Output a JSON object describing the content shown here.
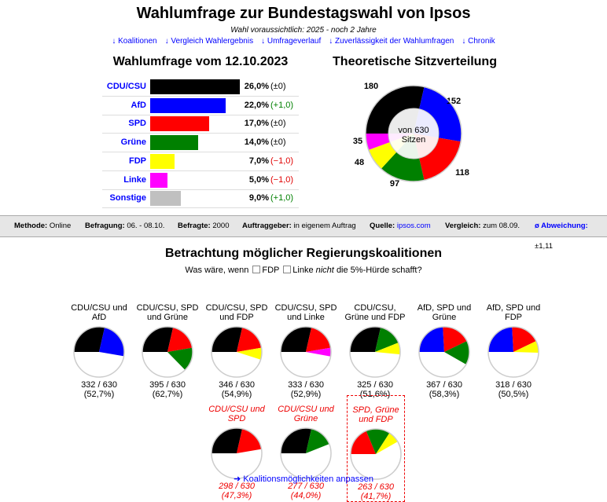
{
  "header": {
    "title": "Wahlumfrage zur Bundestagswahl von Ipsos",
    "subtitle": "Wahl voraussichtlich: 2025 - noch 2 Jahre",
    "nav": [
      "↓ Koalitionen",
      "↓ Vergleich Wahlergebnis",
      "↓ Umfrageverlauf",
      "↓ Zuverlässigkeit der Wahlumfragen",
      "↓ Chronik"
    ]
  },
  "poll": {
    "title": "Wahlumfrage vom 12.10.2023",
    "parties": [
      {
        "name": "CDU/CSU",
        "value": "26,0%",
        "change": "(±0)",
        "pct": 26,
        "color": "#000000",
        "chgcolor": "#000"
      },
      {
        "name": "AfD",
        "value": "22,0%",
        "change": "(+1,0)",
        "pct": 22,
        "color": "#0000ff",
        "chgcolor": "#008000"
      },
      {
        "name": "SPD",
        "value": "17,0%",
        "change": "(±0)",
        "pct": 17,
        "color": "#ff0000",
        "chgcolor": "#000"
      },
      {
        "name": "Grüne",
        "value": "14,0%",
        "change": "(±0)",
        "pct": 14,
        "color": "#008000",
        "chgcolor": "#000"
      },
      {
        "name": "FDP",
        "value": "7,0%",
        "change": "(−1,0)",
        "pct": 7,
        "color": "#ffff00",
        "chgcolor": "#e00000"
      },
      {
        "name": "Linke",
        "value": "5,0%",
        "change": "(−1,0)",
        "pct": 5,
        "color": "#ff00ff",
        "chgcolor": "#e00000"
      },
      {
        "name": "Sonstige",
        "value": "9,0%",
        "change": "(+1,0)",
        "pct": 9,
        "color": "#c0c0c0",
        "chgcolor": "#008000"
      }
    ]
  },
  "seats": {
    "title": "Theoretische Sitzverteilung",
    "center1": "von 630",
    "center2": "Sitzen",
    "total": 630,
    "items": [
      {
        "party": "CDU/CSU",
        "seats": 180,
        "color": "#000000"
      },
      {
        "party": "AfD",
        "seats": 152,
        "color": "#0000ff"
      },
      {
        "party": "SPD",
        "seats": 118,
        "color": "#ff0000"
      },
      {
        "party": "Grüne",
        "seats": 97,
        "color": "#008000"
      },
      {
        "party": "FDP",
        "seats": 48,
        "color": "#ffff00"
      },
      {
        "party": "Linke",
        "seats": 35,
        "color": "#ff00ff"
      }
    ]
  },
  "info": {
    "methode_label": "Methode:",
    "methode": "Online",
    "befragung_label": "Befragung:",
    "befragung": "06. - 08.10.",
    "befragte_label": "Befragte:",
    "befragte": "2000",
    "auftrag_label": "Auftraggeber:",
    "auftrag": "in eigenem Auftrag",
    "quelle_label": "Quelle:",
    "quelle": "ipsos.com",
    "vergleich_label": "Vergleich:",
    "vergleich": "zum 08.09.",
    "abw_label": "ø Abweichung:",
    "abw": "±1,11"
  },
  "coalitions": {
    "title": "Betrachtung möglicher Regierungskoalitionen",
    "q1": "Was wäre, wenn",
    "fdp": "FDP",
    "linke": "Linke",
    "nicht": "nicht",
    "q2": "die 5%-Hürde schafft?",
    "items": [
      {
        "name": "CDU/CSU und AfD",
        "seats": "332 / 630",
        "pct": "(52,7%)",
        "parts": [
          0,
          1
        ]
      },
      {
        "name": "CDU/CSU, SPD und Grüne",
        "seats": "395 / 630",
        "pct": "(62,7%)",
        "parts": [
          0,
          2,
          3
        ]
      },
      {
        "name": "CDU/CSU, SPD und FDP",
        "seats": "346 / 630",
        "pct": "(54,9%)",
        "parts": [
          0,
          2,
          4
        ]
      },
      {
        "name": "CDU/CSU, SPD und Linke",
        "seats": "333 / 630",
        "pct": "(52,9%)",
        "parts": [
          0,
          2,
          5
        ]
      },
      {
        "name": "CDU/CSU, Grüne und FDP",
        "seats": "325 / 630",
        "pct": "(51,6%)",
        "parts": [
          0,
          3,
          4
        ]
      },
      {
        "name": "AfD, SPD und Grüne",
        "seats": "367 / 630",
        "pct": "(58,3%)",
        "parts": [
          1,
          2,
          3
        ]
      },
      {
        "name": "AfD, SPD und FDP",
        "seats": "318 / 630",
        "pct": "(50,5%)",
        "parts": [
          1,
          2,
          4
        ]
      },
      {
        "name": "CDU/CSU und SPD",
        "seats": "298 / 630",
        "pct": "(47,3%)",
        "parts": [
          0,
          2
        ]
      },
      {
        "name": "CDU/CSU und Grüne",
        "seats": "277 / 630",
        "pct": "(44,0%)",
        "parts": [
          0,
          3
        ]
      },
      {
        "name": "SPD, Grüne und FDP",
        "seats": "263 / 630",
        "pct": "(41,7%)",
        "parts": [
          2,
          3,
          4
        ]
      }
    ],
    "link": "➜ Koalitionsmöglichkeiten anpassen"
  }
}
